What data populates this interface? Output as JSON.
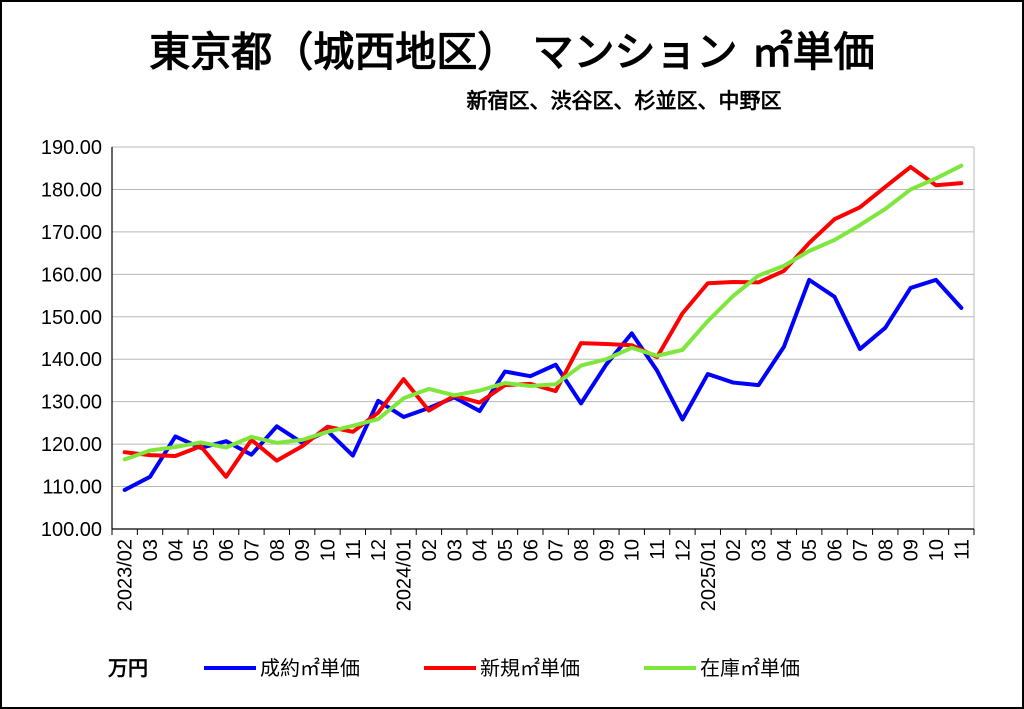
{
  "chart_data": {
    "type": "line",
    "title": "東京都（城西地区） マンション ㎡単価",
    "subtitle": "新宿区、渋谷区、杉並区、中野区",
    "unit_label": "万円",
    "ylim": [
      100,
      190
    ],
    "yticks": [
      "100.00",
      "110.00",
      "120.00",
      "130.00",
      "140.00",
      "150.00",
      "160.00",
      "170.00",
      "180.00",
      "190.00"
    ],
    "categories": [
      "2023/02",
      "03",
      "04",
      "05",
      "06",
      "07",
      "08",
      "09",
      "10",
      "11",
      "12",
      "2024/01",
      "02",
      "03",
      "04",
      "05",
      "06",
      "07",
      "08",
      "09",
      "10",
      "11",
      "12",
      "2025/01",
      "02",
      "03",
      "04",
      "05",
      "06",
      "07",
      "08",
      "09",
      "10",
      "11"
    ],
    "grid": true,
    "legend_position": "bottom",
    "series": [
      {
        "name": "成約㎡単価",
        "color": "#0000ff",
        "values": [
          109.2,
          112.3,
          121.8,
          119.1,
          120.7,
          117.5,
          124.2,
          120.3,
          123.1,
          117.3,
          130.2,
          126.4,
          128.5,
          131.0,
          127.8,
          137.1,
          136.0,
          138.7,
          129.6,
          138.8,
          146.1,
          137.3,
          125.8,
          136.5,
          134.5,
          133.9,
          142.9,
          158.7,
          154.7,
          142.4,
          147.4,
          156.8,
          158.7,
          152.1
        ]
      },
      {
        "name": "新規㎡単価",
        "color": "#ff0000",
        "values": [
          118.1,
          117.4,
          117.2,
          119.5,
          112.3,
          121.0,
          116.1,
          119.5,
          124.1,
          122.9,
          127.4,
          135.3,
          127.9,
          131.4,
          129.8,
          133.9,
          134.2,
          132.5,
          143.8,
          143.6,
          143.3,
          140.5,
          150.8,
          157.9,
          158.2,
          158.1,
          160.8,
          167.4,
          173.0,
          175.8,
          180.6,
          185.3,
          181.0,
          181.5
        ]
      },
      {
        "name": "在庫㎡単価",
        "color": "#7fe63c",
        "values": [
          116.4,
          118.5,
          119.3,
          120.4,
          119.2,
          121.7,
          120.3,
          121.0,
          122.9,
          124.3,
          125.9,
          130.8,
          133.0,
          131.5,
          132.6,
          134.4,
          133.7,
          134.1,
          138.5,
          140.0,
          142.7,
          140.8,
          142.2,
          149.0,
          154.9,
          159.7,
          162.0,
          165.5,
          168.1,
          171.6,
          175.4,
          180.0,
          182.6,
          185.6
        ]
      }
    ]
  }
}
